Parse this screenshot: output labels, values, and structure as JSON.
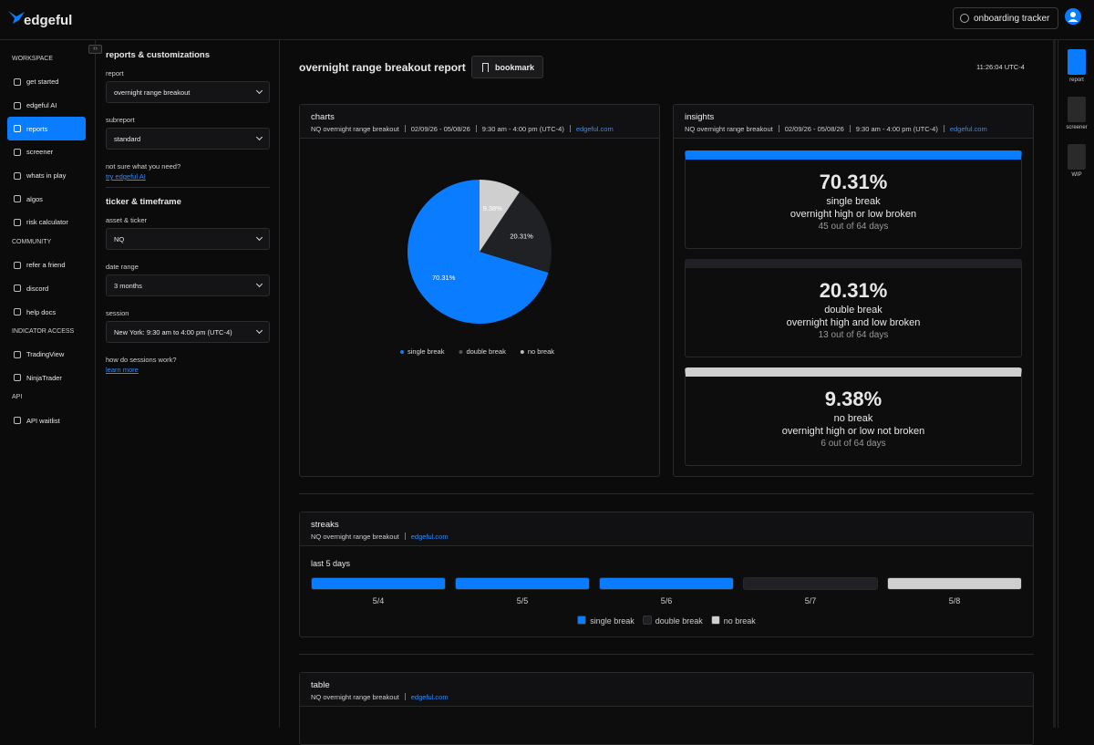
{
  "header": {
    "logo": "edgeful",
    "onboarding": "onboarding tracker"
  },
  "nav": [
    {
      "section": "WORKSPACE",
      "items": [
        {
          "label": "get started"
        },
        {
          "label": "edgeful AI"
        },
        {
          "label": "reports",
          "selected": true
        },
        {
          "label": "screener"
        },
        {
          "label": "whats in play"
        },
        {
          "label": "algos"
        },
        {
          "label": "risk calculator"
        }
      ]
    },
    {
      "section": "COMMUNITY",
      "items": [
        {
          "label": "refer a friend"
        },
        {
          "label": "discord"
        },
        {
          "label": "help docs"
        }
      ]
    },
    {
      "section": "INDICATOR ACCESS",
      "items": [
        {
          "label": "TradingView"
        },
        {
          "label": "NinjaTrader"
        }
      ]
    },
    {
      "section": "API",
      "items": [
        {
          "label": "API waitlist"
        }
      ]
    }
  ],
  "panel": {
    "title": "reports & customizations",
    "fields1": [
      {
        "label": "report",
        "value": "overnight range breakout"
      },
      {
        "label": "subreport",
        "value": "standard"
      }
    ],
    "help1": {
      "text": "not sure what you need?",
      "link": "try edgeful AI"
    },
    "section2": "ticker & timeframe",
    "fields2": [
      {
        "label": "asset & ticker",
        "value": "NQ"
      },
      {
        "label": "date range",
        "value": "3 months"
      },
      {
        "label": "session",
        "value": "New York: 9:30 am to 4:00 pm (UTC-4)"
      }
    ],
    "help2": {
      "text": "how do sessions work?",
      "link": "learn more"
    }
  },
  "report": {
    "title": "overnight range breakout report",
    "bookmark": "bookmark",
    "time": "11:26:04 UTC-4"
  },
  "charts": {
    "title": "charts",
    "meta": [
      "NQ overnight range breakout",
      "02/09/26 - 05/08/26",
      "9:30 am - 4:00 pm (UTC-4)"
    ],
    "link": "edgeful.com",
    "pie": {
      "type": "pie",
      "categories": [
        "single break",
        "double break",
        "no break"
      ],
      "values": [
        70.31,
        20.31,
        9.38
      ],
      "value_labels": [
        "70.31%",
        "20.31%",
        "9.38%"
      ],
      "colors": [
        "#0a7cff",
        "#202124",
        "#cfcfcf"
      ]
    }
  },
  "insights": {
    "title": "insights",
    "meta": [
      "NQ overnight range breakout",
      "02/09/26 - 05/08/26",
      "9:30 am - 4:00 pm (UTC-4)"
    ],
    "link": "edgeful.com",
    "cards": [
      {
        "value": "70.31%",
        "name": "single break",
        "desc": "overnight high or low broken",
        "count": "45 out of 64 days",
        "color": "#0a7cff"
      },
      {
        "value": "20.31%",
        "name": "double break",
        "desc": "overnight high and low broken",
        "count": "13 out of 64 days",
        "color": "#202124"
      },
      {
        "value": "9.38%",
        "name": "no break",
        "desc": "overnight high or low not broken",
        "count": "6 out of 64 days",
        "color": "#cfcfcf"
      }
    ]
  },
  "streaks": {
    "title": "streaks",
    "meta": [
      "NQ overnight range breakout"
    ],
    "link": "edgeful.com",
    "subtitle": "last 5 days",
    "days": [
      {
        "label": "5/4",
        "color": "#0a7cff"
      },
      {
        "label": "5/5",
        "color": "#0a7cff"
      },
      {
        "label": "5/6",
        "color": "#0a7cff"
      },
      {
        "label": "5/7",
        "color": "#202124"
      },
      {
        "label": "5/8",
        "color": "#cfcfcf"
      }
    ],
    "legend": [
      {
        "label": "single break",
        "color": "#0a7cff"
      },
      {
        "label": "double break",
        "color": "#202124"
      },
      {
        "label": "no break",
        "color": "#cfcfcf"
      }
    ]
  },
  "table": {
    "title": "table",
    "meta": [
      "NQ overnight range breakout"
    ],
    "link": "edgeful.com"
  },
  "rail": [
    {
      "label": "report",
      "selected": true
    },
    {
      "label": "screener"
    },
    {
      "label": "WIP"
    }
  ]
}
